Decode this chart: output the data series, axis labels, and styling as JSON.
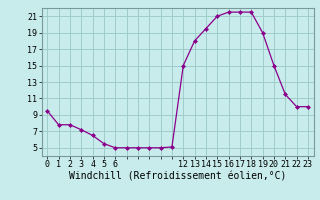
{
  "hours": [
    0,
    1,
    2,
    3,
    4,
    5,
    6,
    7,
    8,
    9,
    10,
    11,
    12,
    13,
    14,
    15,
    16,
    17,
    18,
    19,
    20,
    21,
    22,
    23
  ],
  "values": [
    9.5,
    7.8,
    7.8,
    7.2,
    6.5,
    5.5,
    5.0,
    5.0,
    5.0,
    5.0,
    5.0,
    5.1,
    15.0,
    18.0,
    19.5,
    21.0,
    21.5,
    21.5,
    21.5,
    19.0,
    15.0,
    11.5,
    10.0,
    10.0
  ],
  "xlabel": "Windchill (Refroidissement éolien,°C)",
  "ylim": [
    4,
    22
  ],
  "xlim": [
    -0.5,
    23.5
  ],
  "yticks": [
    5,
    7,
    9,
    11,
    13,
    15,
    17,
    19,
    21
  ],
  "xticks_all": [
    0,
    1,
    2,
    3,
    4,
    5,
    6,
    7,
    8,
    9,
    10,
    11,
    12,
    13,
    14,
    15,
    16,
    17,
    18,
    19,
    20,
    21,
    22,
    23
  ],
  "xtick_labels": [
    "0",
    "1",
    "2",
    "3",
    "4",
    "5",
    "6",
    "",
    "",
    "",
    "",
    "",
    "12",
    "13",
    "14",
    "15",
    "16",
    "17",
    "18",
    "19",
    "20",
    "21",
    "22",
    "23"
  ],
  "line_color": "#8b008b",
  "marker_color": "#8b008b",
  "bg_color": "#c8ecec",
  "grid_color": "#a0cccc",
  "xlabel_fontsize": 7,
  "tick_fontsize": 6
}
